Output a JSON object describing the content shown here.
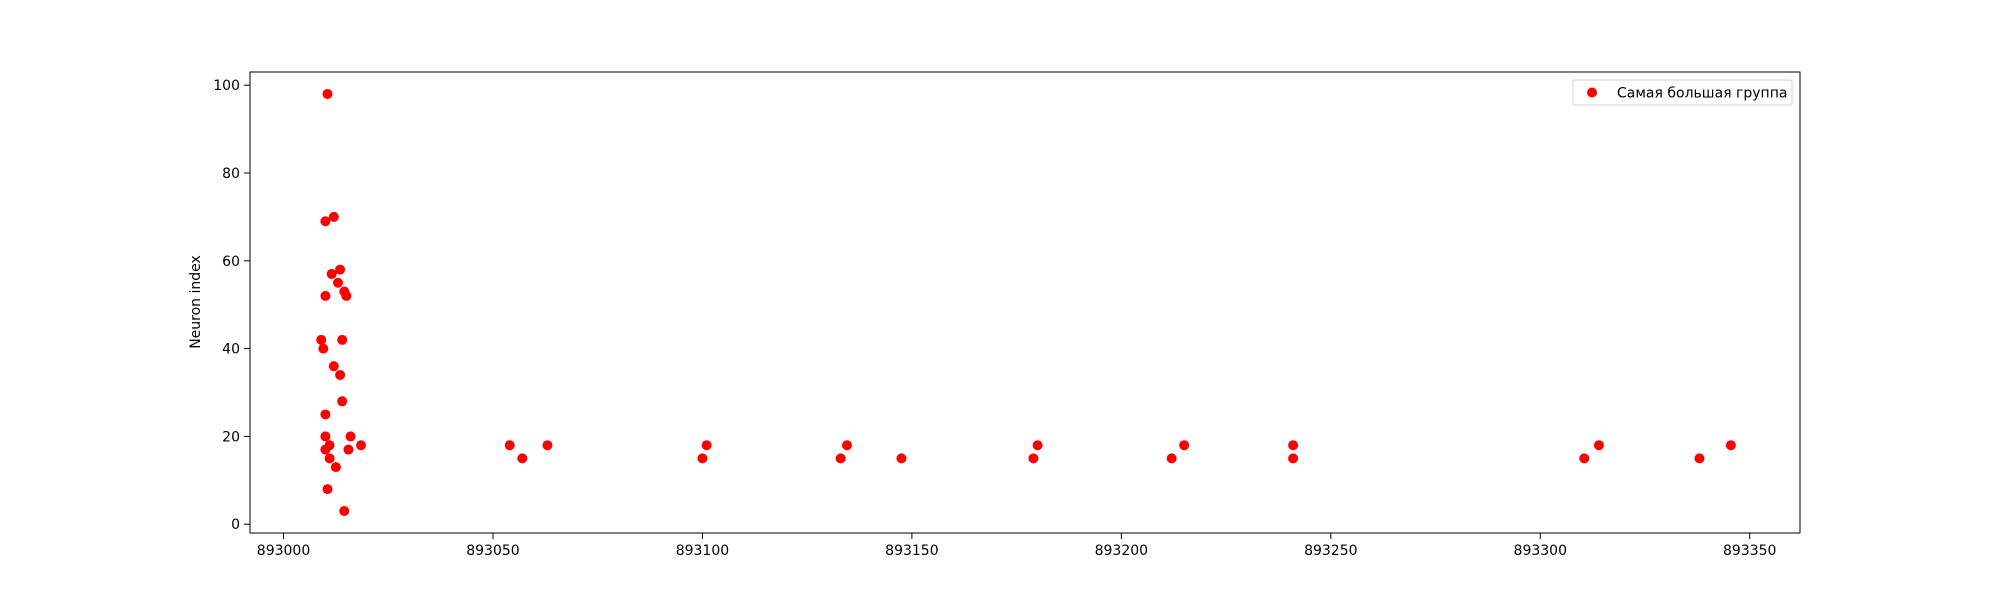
{
  "chart_data": {
    "type": "scatter",
    "title": "",
    "xlabel": "",
    "ylabel": "Neuron index",
    "xlim": [
      892992,
      893362
    ],
    "ylim": [
      -2,
      103
    ],
    "xticks": [
      893000,
      893050,
      893100,
      893150,
      893200,
      893250,
      893300,
      893350
    ],
    "yticks": [
      0,
      20,
      40,
      60,
      80,
      100
    ],
    "grid": false,
    "legend": {
      "position": "upper-right",
      "entries": [
        "Самая большая группа"
      ]
    },
    "series": [
      {
        "name": "Самая большая группа",
        "color": "#ff0000",
        "marker": "circle",
        "points": [
          [
            893009,
            42
          ],
          [
            893009.5,
            40
          ],
          [
            893010,
            25
          ],
          [
            893010,
            20
          ],
          [
            893010,
            17
          ],
          [
            893010,
            52
          ],
          [
            893010,
            69
          ],
          [
            893010.5,
            98
          ],
          [
            893010.5,
            8
          ],
          [
            893011,
            18
          ],
          [
            893011,
            15
          ],
          [
            893011.5,
            57
          ],
          [
            893012,
            70
          ],
          [
            893012,
            36
          ],
          [
            893012.5,
            13
          ],
          [
            893013,
            55
          ],
          [
            893013.5,
            58
          ],
          [
            893013.5,
            34
          ],
          [
            893014,
            28
          ],
          [
            893014,
            42
          ],
          [
            893014.5,
            53
          ],
          [
            893014.5,
            3
          ],
          [
            893015,
            52
          ],
          [
            893015.5,
            17
          ],
          [
            893016,
            20
          ],
          [
            893018.5,
            18
          ],
          [
            893054,
            18
          ],
          [
            893057,
            15
          ],
          [
            893063,
            18
          ],
          [
            893100,
            15
          ],
          [
            893101,
            18
          ],
          [
            893133,
            15
          ],
          [
            893134.5,
            18
          ],
          [
            893147.5,
            15
          ],
          [
            893179,
            15
          ],
          [
            893180,
            18
          ],
          [
            893212,
            15
          ],
          [
            893215,
            18
          ],
          [
            893241,
            15
          ],
          [
            893241,
            18
          ],
          [
            893310.5,
            15
          ],
          [
            893314,
            18
          ],
          [
            893338,
            15
          ],
          [
            893345.5,
            18
          ]
        ]
      }
    ]
  }
}
